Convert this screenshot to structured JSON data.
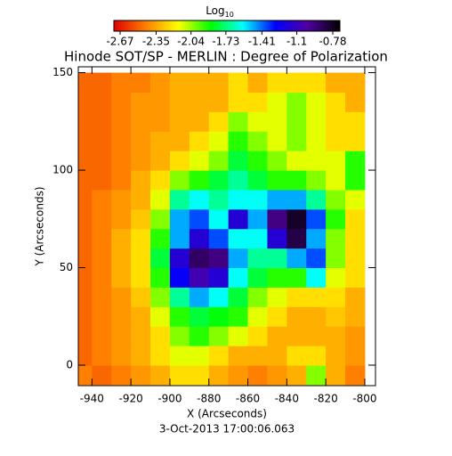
{
  "chart_data": {
    "type": "heatmap",
    "title": "Hinode SOT/SP - MERLIN : Degree of Polarization",
    "xlabel": "X (Arcseconds)",
    "ylabel": "Y (Arcseconds)",
    "footer": "3-Oct-2013 17:00:06.063",
    "colorbar": {
      "label": "Log",
      "label_subscript": "10",
      "lim": [
        -2.67,
        -0.78
      ],
      "ticks": [
        -2.67,
        -2.35,
        -2.04,
        -1.73,
        -1.41,
        -1.1,
        -0.78
      ]
    },
    "colormap": [
      "#e00000",
      "#ff8000",
      "#ffff00",
      "#00ff00",
      "#00ffff",
      "#0000ff",
      "#5000a0",
      "#000000"
    ],
    "xlim": [
      -947,
      -794.5
    ],
    "ylim": [
      -10.5,
      153
    ],
    "xticks": [
      -940,
      -920,
      -900,
      -880,
      -860,
      -840,
      -820,
      -800
    ],
    "yticks": [
      0,
      50,
      100,
      150
    ],
    "x": [
      -945,
      -935,
      -925,
      -915,
      -905,
      -895,
      -885,
      -875,
      -865,
      -855,
      -845,
      -835,
      -825,
      -815,
      -805
    ],
    "y": [
      -5,
      5,
      15,
      25,
      35,
      45,
      55,
      65,
      75,
      85,
      95,
      105,
      115,
      125,
      135,
      145
    ],
    "z": [
      [
        -2.4,
        -2.45,
        -2.4,
        -2.35,
        -2.3,
        -2.2,
        -2.2,
        -2.3,
        -2.35,
        -2.4,
        -2.35,
        -2.3,
        -2.0,
        -2.3,
        -2.4
      ],
      [
        -2.45,
        -2.4,
        -2.35,
        -2.3,
        -2.2,
        -2.1,
        -2.1,
        -2.2,
        -2.3,
        -2.3,
        -2.3,
        -2.2,
        -2.2,
        -2.3,
        -2.35
      ],
      [
        -2.45,
        -2.4,
        -2.35,
        -2.3,
        -2.2,
        -2.0,
        -1.9,
        -2.0,
        -2.1,
        -2.2,
        -2.3,
        -2.3,
        -2.3,
        -2.3,
        -2.35
      ],
      [
        -2.45,
        -2.4,
        -2.35,
        -2.3,
        -2.1,
        -1.9,
        -1.8,
        -1.85,
        -1.9,
        -2.1,
        -2.2,
        -2.3,
        -2.3,
        -2.25,
        -2.3
      ],
      [
        -2.45,
        -2.4,
        -2.35,
        -2.25,
        -2.0,
        -1.7,
        -1.5,
        -1.6,
        -1.8,
        -2.0,
        -2.1,
        -2.2,
        -2.2,
        -2.2,
        -2.3
      ],
      [
        -2.45,
        -2.4,
        -2.3,
        -2.2,
        -1.9,
        -1.3,
        -1.1,
        -1.2,
        -1.6,
        -1.8,
        -1.9,
        -1.9,
        -1.6,
        -2.1,
        -2.2
      ],
      [
        -2.45,
        -2.4,
        -2.3,
        -2.2,
        -1.8,
        -1.2,
        -0.95,
        -1.0,
        -1.5,
        -1.7,
        -1.7,
        -1.5,
        -1.4,
        -2.0,
        -2.2
      ],
      [
        -2.45,
        -2.4,
        -2.3,
        -2.2,
        -1.9,
        -1.5,
        -1.2,
        -1.4,
        -1.6,
        -1.6,
        -1.2,
        -0.9,
        -1.5,
        -2.0,
        -2.2
      ],
      [
        -2.45,
        -2.4,
        -2.35,
        -2.25,
        -2.0,
        -1.5,
        -1.4,
        -1.6,
        -1.2,
        -1.5,
        -1.0,
        -0.85,
        -1.4,
        -1.9,
        -2.2
      ],
      [
        -2.45,
        -2.4,
        -2.35,
        -2.3,
        -2.1,
        -1.7,
        -1.6,
        -1.7,
        -1.6,
        -1.6,
        -1.5,
        -1.5,
        -1.7,
        -2.0,
        -2.1
      ],
      [
        -2.45,
        -2.45,
        -2.4,
        -2.3,
        -2.2,
        -2.0,
        -1.9,
        -1.8,
        -1.7,
        -1.8,
        -1.9,
        -1.9,
        -2.0,
        -2.1,
        -1.9
      ],
      [
        -2.45,
        -2.45,
        -2.4,
        -2.35,
        -2.3,
        -2.2,
        -2.1,
        -2.0,
        -1.8,
        -1.9,
        -2.0,
        -2.1,
        -2.1,
        -2.1,
        -1.9
      ],
      [
        -2.45,
        -2.45,
        -2.4,
        -2.35,
        -2.3,
        -2.3,
        -2.2,
        -2.1,
        -1.9,
        -2.0,
        -2.1,
        -2.0,
        -2.1,
        -2.2,
        -2.2
      ],
      [
        -2.45,
        -2.45,
        -2.4,
        -2.35,
        -2.35,
        -2.3,
        -2.3,
        -2.2,
        -2.0,
        -2.1,
        -2.1,
        -2.0,
        -2.1,
        -2.2,
        -2.2
      ],
      [
        -2.45,
        -2.45,
        -2.4,
        -2.35,
        -2.35,
        -2.3,
        -2.3,
        -2.3,
        -2.2,
        -2.2,
        -2.1,
        -2.0,
        -2.1,
        -2.2,
        -2.3
      ],
      [
        -2.45,
        -2.45,
        -2.4,
        -2.4,
        -2.35,
        -2.3,
        -2.3,
        -2.3,
        -2.2,
        -2.3,
        -2.2,
        -2.2,
        -2.2,
        -2.3,
        -2.3
      ]
    ]
  }
}
